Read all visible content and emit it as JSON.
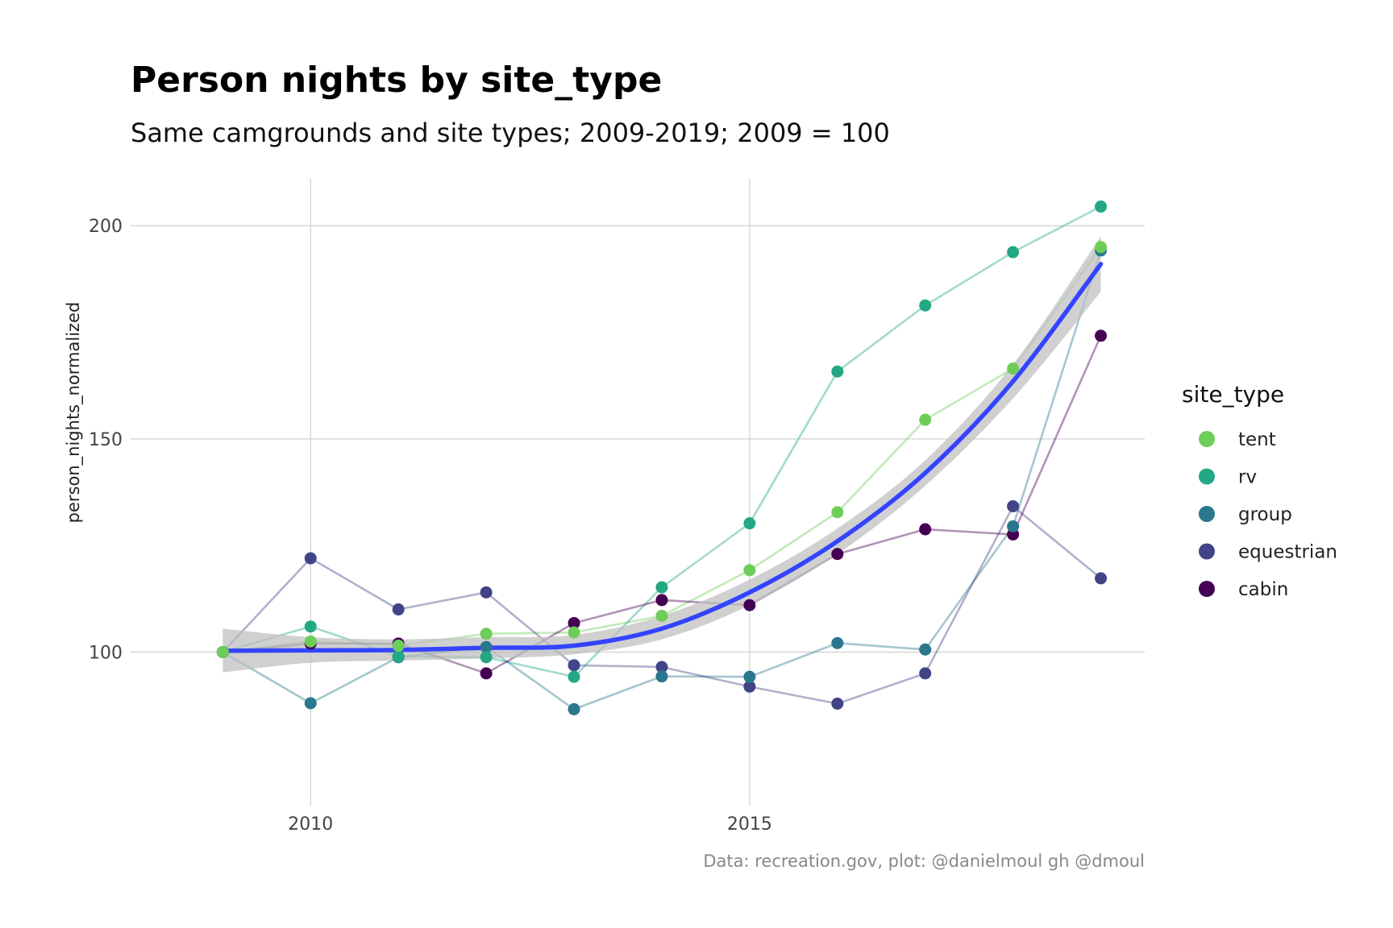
{
  "chart_data": {
    "type": "line",
    "title": "Person nights by site_type",
    "subtitle": "Same camgrounds and site types; 2009-2019; 2009 = 100",
    "xlabel": "",
    "ylabel": "person_nights_normalized",
    "caption": "Data: recreation.gov, plot: @danielmoul gh @dmoul",
    "x": [
      2009,
      2010,
      2011,
      2012,
      2013,
      2014,
      2015,
      2016,
      2017,
      2018,
      2019
    ],
    "xlim": [
      2007.95,
      2019.5
    ],
    "ylim": [
      64,
      211
    ],
    "x_ticks": [
      2010,
      2015
    ],
    "x_tick_labels": [
      "2010",
      "2015"
    ],
    "y_ticks": [
      100,
      150,
      200
    ],
    "y_tick_labels": [
      "100",
      "150",
      "200"
    ],
    "grid": true,
    "legend": {
      "title": "site_type",
      "placement": "right"
    },
    "series": [
      {
        "name": "tent",
        "color": "#6DCD59",
        "values": [
          100,
          102.5,
          101.5,
          104.3,
          104.6,
          108.5,
          119.2,
          132.8,
          154.5,
          166.5,
          195
        ]
      },
      {
        "name": "rv",
        "color": "#22A884",
        "values": [
          100,
          106.0,
          99.0,
          98.8,
          94.2,
          115.2,
          130.2,
          165.8,
          181.3,
          193.8,
          204.5
        ]
      },
      {
        "name": "group",
        "color": "#2A788E",
        "values": [
          100,
          88.0,
          98.8,
          101.2,
          86.6,
          94.3,
          94.2,
          102.1,
          100.6,
          129.5,
          194.2
        ]
      },
      {
        "name": "equestrian",
        "color": "#414487",
        "values": [
          100,
          122.0,
          110.0,
          114.0,
          96.9,
          96.5,
          91.9,
          87.9,
          95.0,
          134.2,
          117.3
        ]
      },
      {
        "name": "cabin",
        "color": "#440154",
        "values": [
          100,
          102.0,
          102.0,
          95.0,
          106.8,
          112.2,
          111.0,
          123.0,
          128.8,
          127.6,
          174.2
        ]
      }
    ],
    "smooth": {
      "color": "#3344FF",
      "band_color": "#BEBEBE",
      "x": [
        2009,
        2010,
        2011,
        2012,
        2013,
        2014,
        2015,
        2016,
        2017,
        2018,
        2019
      ],
      "values": [
        100.3,
        100.4,
        100.5,
        101.0,
        101.5,
        105.5,
        114.0,
        126.0,
        142.0,
        163.5,
        191.0
      ],
      "lower": [
        95.2,
        97.5,
        98.0,
        98.5,
        99.5,
        103.0,
        111.0,
        123.0,
        139.0,
        159.5,
        184.5
      ],
      "upper": [
        105.5,
        103.5,
        103.0,
        103.5,
        104.0,
        108.5,
        117.0,
        129.0,
        145.0,
        167.5,
        197.5
      ]
    }
  }
}
